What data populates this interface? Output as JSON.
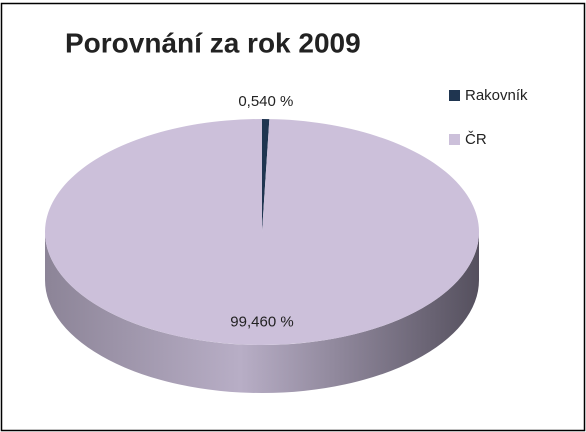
{
  "chart_data": {
    "type": "pie",
    "title": "Porovnání za rok 2009",
    "categories": [
      "Rakovník",
      "ČR"
    ],
    "values": [
      0.54,
      99.46
    ],
    "value_labels": [
      "0,540 %",
      "99,460 %"
    ],
    "colors": [
      "#1f3550",
      "#ccc0da"
    ],
    "legend": "right"
  }
}
